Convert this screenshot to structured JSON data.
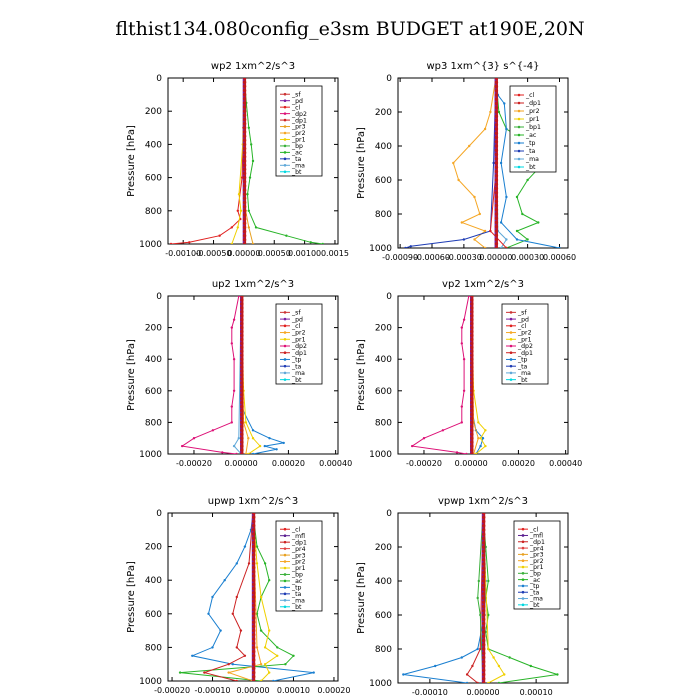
{
  "title": "flthist134.080config_e3sm  BUDGET at190E,20N",
  "colors": {
    "_sf": "#cc3333",
    "_pd": "#7a1fa2",
    "_cl": "#e0201f",
    "_dp2": "#dd1177",
    "_dp1": "#cc2222",
    "_pr3": "#e8a020",
    "_pr2": "#f5a623",
    "_pr1": "#f0d000",
    "_pr4": "#e04040",
    "_bp": "#3ab03a",
    "_bp1": "#3ab03a",
    "_ac": "#28b428",
    "_tp": "#1a7fd0",
    "_ta": "#1e3cb4",
    "_ma": "#5fa8d8",
    "_bt": "#00d8e0",
    "_mfl": "#5a1e90"
  },
  "chart_data": [
    {
      "type": "line",
      "title": "wp2   1xm^2/s^3",
      "ylabel": "Pressure [hPa]",
      "xlim": [
        -0.00125,
        0.00155
      ],
      "ylim": [
        1000,
        0
      ],
      "xticks": [
        -0.001,
        -0.0005,
        0.0,
        0.0005,
        0.001,
        0.0015
      ],
      "xticklabels": [
        "-0.00100",
        "-0.00050",
        "0.00000",
        "0.00050",
        "0.00100",
        "0.0015"
      ],
      "yticks": [
        0,
        200,
        400,
        600,
        800,
        1000
      ],
      "legend": [
        "_sf",
        "_pd",
        "_cl",
        "_dp2",
        "_dp1",
        "_pr3",
        "_pr2",
        "_pr1",
        "_bp",
        "_ac",
        "_ta",
        "_ma",
        "_bt"
      ],
      "series": [
        {
          "name": "_ac",
          "p": [
            0,
            150,
            300,
            400,
            500,
            600,
            700,
            800,
            900,
            950,
            990,
            1000
          ],
          "v": [
            1e-05,
            4e-05,
            8e-05,
            0.00012,
            0.00015,
            0.0001,
            6e-05,
            8e-05,
            0.0002,
            0.0007,
            0.0011,
            0.0013
          ]
        },
        {
          "name": "_cl",
          "p": [
            0,
            300,
            600,
            800,
            850,
            900,
            950,
            990,
            1000
          ],
          "v": [
            0,
            -1e-05,
            -3e-05,
            -0.0001,
            -6e-05,
            -0.0002,
            -0.0004,
            -0.0009,
            -0.0012
          ]
        },
        {
          "name": "_pr1",
          "p": [
            0,
            400,
            700,
            800,
            900,
            1000
          ],
          "v": [
            0,
            -2e-05,
            -8e-05,
            -5e-05,
            -0.0001,
            -0.0002
          ]
        },
        {
          "name": "_pr3",
          "p": [
            0,
            400,
            800,
            900,
            1000
          ],
          "v": [
            0,
            1e-05,
            3e-05,
            8e-05,
            0.00015
          ]
        },
        {
          "name": "_bt",
          "p": [
            0,
            500,
            1000
          ],
          "v": [
            0,
            0,
            0
          ]
        },
        {
          "name": "_pd",
          "p": [
            0,
            1000
          ],
          "v": [
            1e-05,
            1e-05
          ]
        }
      ]
    },
    {
      "type": "line",
      "title": "wp3   1xm^{3} s^{-4}",
      "ylabel": "Pressure [hPa]",
      "xlim": [
        -0.00092,
        0.00068
      ],
      "ylim": [
        1000,
        0
      ],
      "xticks": [
        -0.0009,
        -0.0006,
        -0.0003,
        0.0,
        0.0003,
        0.0006
      ],
      "xticklabels": [
        "-0.00090",
        "-0.00060",
        "-0.00030",
        "0.00000",
        "0.00030",
        "0.00060"
      ],
      "yticks": [
        0,
        200,
        400,
        600,
        800,
        1000
      ],
      "legend": [
        "_cl",
        "_dp1",
        "_pr2",
        "_pr1",
        "_bp1",
        "_ac",
        "_tp",
        "_ta",
        "_ma",
        "_bt"
      ],
      "series": [
        {
          "name": "_pr2",
          "p": [
            0,
            200,
            300,
            400,
            500,
            600,
            700,
            800,
            850,
            900,
            950,
            1000
          ],
          "v": [
            0,
            -5e-05,
            -0.0001,
            -0.00025,
            -0.0004,
            -0.00035,
            -0.0002,
            -0.00015,
            -0.00032,
            -0.0001,
            -0.0002,
            -0.0001
          ]
        },
        {
          "name": "_ac",
          "p": [
            0,
            200,
            300,
            400,
            500,
            600,
            700,
            800,
            850,
            900,
            950,
            1000
          ],
          "v": [
            0,
            3e-05,
            0.0001,
            0.00035,
            0.00045,
            0.0003,
            0.0002,
            0.00025,
            0.0004,
            0.0002,
            0.0003,
            0.0001
          ]
        },
        {
          "name": "_tp",
          "p": [
            0,
            100,
            150,
            300,
            500,
            700,
            850,
            950,
            1000
          ],
          "v": [
            0,
            2e-05,
            8e-05,
            0.0001,
            5e-05,
            0.0001,
            5e-05,
            0.0002,
            0.0006
          ]
        },
        {
          "name": "_ta",
          "p": [
            0,
            500,
            900,
            950,
            990,
            1000
          ],
          "v": [
            0,
            -2e-05,
            -5e-05,
            -0.0003,
            -0.0008,
            -0.00085
          ]
        },
        {
          "name": "_ma",
          "p": [
            0,
            900,
            950,
            1000
          ],
          "v": [
            0,
            2e-05,
            0.0001,
            5e-05
          ]
        },
        {
          "name": "_cl",
          "p": [
            0,
            500,
            900,
            1000
          ],
          "v": [
            0,
            1e-05,
            -5e-05,
            0.0001
          ]
        },
        {
          "name": "_bt",
          "p": [
            0,
            1000
          ],
          "v": [
            1e-05,
            1e-05
          ]
        }
      ]
    },
    {
      "type": "line",
      "title": "up2   1xm^2/s^3",
      "ylabel": "Pressure [hPa]",
      "xlim": [
        -0.00031,
        0.00041
      ],
      "ylim": [
        1000,
        0
      ],
      "xticks": [
        -0.0002,
        0.0,
        0.0002,
        0.0004
      ],
      "xticklabels": [
        "-0.00020",
        "0.00000",
        "0.00020",
        "0.00040"
      ],
      "yticks": [
        0,
        200,
        400,
        600,
        800,
        1000
      ],
      "legend": [
        "_sf",
        "_pd",
        "_cl",
        "_pr2",
        "_pr1",
        "_dp2",
        "_dp1",
        "_tp",
        "_ta",
        "_ma",
        "_bt"
      ],
      "series": [
        {
          "name": "_dp2",
          "p": [
            0,
            150,
            200,
            300,
            400,
            600,
            700,
            800,
            850,
            900,
            950,
            990,
            1000
          ],
          "v": [
            -1e-05,
            -3e-05,
            -4e-05,
            -4e-05,
            -3e-05,
            -3e-05,
            -4e-05,
            -4e-05,
            -0.00012,
            -0.0002,
            -0.00025,
            -8e-05,
            -2e-05
          ]
        },
        {
          "name": "_tp",
          "p": [
            0,
            700,
            850,
            900,
            930,
            950,
            970,
            1000
          ],
          "v": [
            0,
            0,
            5e-05,
            0.00012,
            0.00018,
            0.0001,
            0.00015,
            5e-05
          ]
        },
        {
          "name": "_pr1",
          "p": [
            0,
            600,
            800,
            900,
            950,
            1000
          ],
          "v": [
            0,
            1e-05,
            2e-05,
            5e-05,
            8e-05,
            3e-05
          ]
        },
        {
          "name": "_pr2",
          "p": [
            0,
            800,
            900,
            1000
          ],
          "v": [
            0,
            1e-05,
            3e-05,
            2e-05
          ]
        },
        {
          "name": "_ma",
          "p": [
            0,
            900,
            950,
            1000
          ],
          "v": [
            0,
            -1e-05,
            -3e-05,
            0
          ]
        },
        {
          "name": "_cl",
          "p": [
            0,
            1000
          ],
          "v": [
            0,
            0
          ]
        }
      ]
    },
    {
      "type": "line",
      "title": "vp2   1xm^2/s^3",
      "ylabel": "Pressure [hPa]",
      "xlim": [
        -0.00031,
        0.00041
      ],
      "ylim": [
        1000,
        0
      ],
      "xticks": [
        -0.0002,
        0.0,
        0.0002,
        0.0004
      ],
      "xticklabels": [
        "-0.00020",
        "0.00000",
        "0.00020",
        "0.00040"
      ],
      "yticks": [
        0,
        200,
        400,
        600,
        800,
        1000
      ],
      "legend": [
        "_sf",
        "_pd",
        "_cl",
        "_pr2",
        "_pr1",
        "_dp2",
        "_dp1",
        "_tp",
        "_ta",
        "_ma",
        "_bt"
      ],
      "series": [
        {
          "name": "_dp2",
          "p": [
            0,
            150,
            200,
            300,
            400,
            600,
            700,
            800,
            850,
            900,
            950,
            990,
            1000
          ],
          "v": [
            -1e-05,
            -3e-05,
            -4e-05,
            -4e-05,
            -3e-05,
            -3e-05,
            -4e-05,
            -4e-05,
            -0.00012,
            -0.0002,
            -0.00025,
            -6e-05,
            -2e-05
          ]
        },
        {
          "name": "_tp",
          "p": [
            0,
            700,
            850,
            900,
            950,
            1000
          ],
          "v": [
            0,
            0,
            2e-05,
            5e-05,
            4e-05,
            2e-05
          ]
        },
        {
          "name": "_pr1",
          "p": [
            0,
            600,
            800,
            850,
            900,
            950,
            1000
          ],
          "v": [
            0,
            1e-05,
            3e-05,
            6e-05,
            4e-05,
            6e-05,
            2e-05
          ]
        },
        {
          "name": "_pr2",
          "p": [
            0,
            800,
            900,
            1000
          ],
          "v": [
            0,
            1e-05,
            3e-05,
            1e-05
          ]
        },
        {
          "name": "_cl",
          "p": [
            0,
            1000
          ],
          "v": [
            0,
            0
          ]
        }
      ]
    },
    {
      "type": "line",
      "title": "upwp   1xm^2/s^3",
      "ylabel": "Pressure [hPa]",
      "xlim": [
        -0.00021,
        0.00021
      ],
      "ylim": [
        1000,
        0
      ],
      "xticks": [
        -0.0002,
        -0.0001,
        0.0,
        0.0001,
        0.0002
      ],
      "xticklabels": [
        "-0.00020",
        "-0.00010",
        "0.00000",
        "0.00010",
        "0.00020"
      ],
      "yticks": [
        0,
        200,
        400,
        600,
        800,
        1000
      ],
      "legend": [
        "_cl",
        "_mfl",
        "_dp1",
        "_pr4",
        "_pr3",
        "_pr2",
        "_pr1",
        "_bp",
        "_ac",
        "_tp",
        "_ta",
        "_ma",
        "_bt"
      ],
      "series": [
        {
          "name": "_tp",
          "p": [
            0,
            100,
            200,
            300,
            400,
            500,
            600,
            700,
            800,
            850,
            900,
            950,
            1000
          ],
          "v": [
            0,
            -5e-06,
            -2e-05,
            -4e-05,
            -7e-05,
            -0.0001,
            -0.00011,
            -8e-05,
            -0.0001,
            -0.00015,
            -5e-05,
            0.00015,
            5e-05
          ]
        },
        {
          "name": "_ac",
          "p": [
            0,
            200,
            300,
            400,
            500,
            600,
            700,
            800,
            850,
            900,
            950,
            1000
          ],
          "v": [
            0,
            1e-05,
            3e-05,
            4e-05,
            2e-05,
            1e-05,
            2e-05,
            6e-05,
            0.0001,
            8e-05,
            -0.00018,
            2e-05
          ]
        },
        {
          "name": "_pr1",
          "p": [
            0,
            300,
            500,
            700,
            800,
            850,
            900,
            950,
            1000
          ],
          "v": [
            0,
            1e-05,
            2e-05,
            4e-05,
            3e-05,
            6e-05,
            3e-05,
            4e-05,
            2e-05
          ]
        },
        {
          "name": "_dp1",
          "p": [
            0,
            300,
            500,
            600,
            700,
            800,
            850,
            900,
            950,
            1000
          ],
          "v": [
            0,
            -1e-05,
            -4e-05,
            -5e-05,
            -3e-05,
            -4e-05,
            -2e-05,
            -6e-05,
            -0.00012,
            -4e-05
          ]
        },
        {
          "name": "_pr2",
          "p": [
            0,
            800,
            900,
            950,
            1000
          ],
          "v": [
            0,
            1e-05,
            2e-05,
            -6e-05,
            0
          ]
        },
        {
          "name": "_mfl",
          "p": [
            0,
            1000
          ],
          "v": [
            3e-06,
            3e-06
          ]
        }
      ]
    },
    {
      "type": "line",
      "title": "vpwp   1xm^2/s^3",
      "ylabel": "Pressure [hPa]",
      "xlim": [
        -0.00016,
        0.00016
      ],
      "ylim": [
        1000,
        0
      ],
      "xticks": [
        -0.0001,
        0.0,
        0.0001
      ],
      "xticklabels": [
        "-0.00010",
        "0.00000",
        "0.00010"
      ],
      "yticks": [
        0,
        200,
        400,
        600,
        800,
        1000
      ],
      "legend": [
        "_cl",
        "_mfl",
        "_dp1",
        "_pr4",
        "_pr3",
        "_pr2",
        "_pr1",
        "_bp",
        "_ac",
        "_tp",
        "_ta",
        "_ma",
        "_bt"
      ],
      "series": [
        {
          "name": "_ac",
          "p": [
            0,
            200,
            400,
            500,
            600,
            700,
            800,
            850,
            900,
            950,
            1000
          ],
          "v": [
            0,
            5e-06,
            1e-05,
            5e-06,
            1e-05,
            5e-06,
            1e-05,
            5e-05,
            9e-05,
            0.00014,
            3e-05
          ]
        },
        {
          "name": "_tp",
          "p": [
            0,
            200,
            400,
            600,
            800,
            850,
            900,
            950,
            1000
          ],
          "v": [
            0,
            3e-06,
            5e-06,
            3e-06,
            -1e-05,
            -4e-05,
            -9e-05,
            -0.00015,
            -3e-05
          ]
        },
        {
          "name": "_pr1",
          "p": [
            0,
            800,
            850,
            900,
            950,
            1000
          ],
          "v": [
            0,
            1e-05,
            2e-05,
            3e-05,
            4e-05,
            1e-05
          ]
        },
        {
          "name": "_dp1",
          "p": [
            0,
            800,
            900,
            950,
            1000
          ],
          "v": [
            0,
            -5e-06,
            -2e-05,
            -3e-05,
            -1e-05
          ]
        },
        {
          "name": "_bp",
          "p": [
            0,
            400,
            500,
            600,
            1000
          ],
          "v": [
            0,
            -8e-06,
            -1e-05,
            -5e-06,
            0
          ]
        },
        {
          "name": "_mfl",
          "p": [
            0,
            1000
          ],
          "v": [
            2e-06,
            2e-06
          ]
        }
      ]
    }
  ]
}
